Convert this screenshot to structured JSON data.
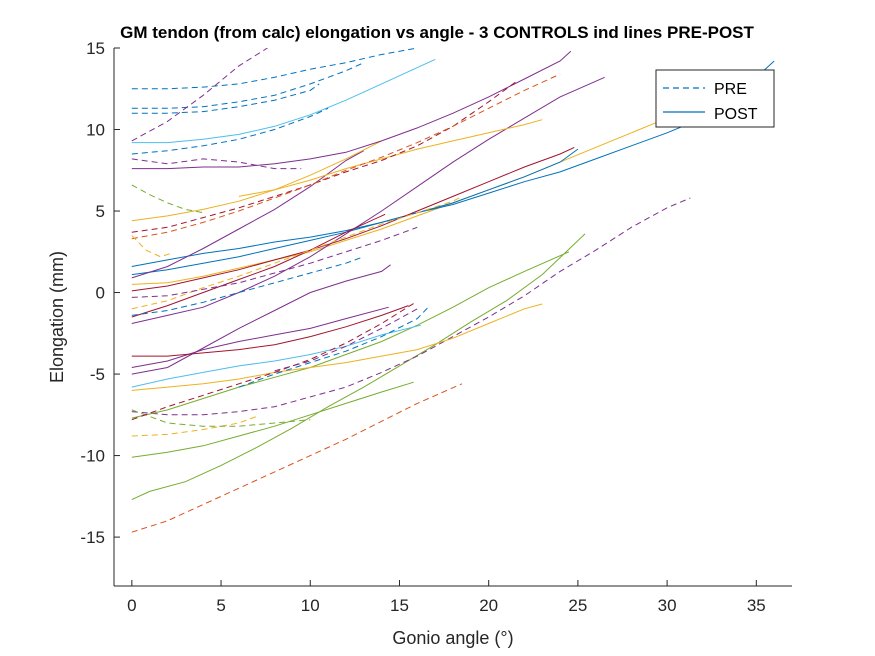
{
  "chart_data": {
    "type": "line",
    "title": "GM tendon (from calc) elongation vs angle - 3 CONTROLS ind lines PRE-POST",
    "xlabel": "Gonio angle (°)",
    "ylabel": "Elongation (mm)",
    "xlim": [
      -1,
      37
    ],
    "ylim": [
      -18,
      15
    ],
    "xticks": [
      0,
      5,
      10,
      15,
      20,
      25,
      30,
      35
    ],
    "yticks": [
      -15,
      -10,
      -5,
      0,
      5,
      10,
      15
    ],
    "grid": false,
    "legend": {
      "placement": "top-right",
      "entries": [
        {
          "label": "PRE",
          "style": "dashed",
          "color": "#0072bd"
        },
        {
          "label": "POST",
          "style": "solid",
          "color": "#0072bd"
        }
      ]
    },
    "series": [
      {
        "style": "dashed",
        "color": "#d95319",
        "x": [
          0,
          2,
          4,
          6,
          8,
          10,
          12,
          14,
          16,
          18.5
        ],
        "y": [
          -14.7,
          -14.0,
          -13.0,
          -12.0,
          -11.0,
          -10.0,
          -9.0,
          -7.9,
          -6.8,
          -5.6
        ]
      },
      {
        "style": "solid",
        "color": "#77ac30",
        "x": [
          0,
          1,
          3,
          5,
          7,
          9,
          11,
          13,
          15,
          17,
          19,
          21,
          23,
          25.4
        ],
        "y": [
          -12.7,
          -12.2,
          -11.6,
          -10.6,
          -9.5,
          -8.3,
          -7.0,
          -5.8,
          -4.5,
          -3.2,
          -1.8,
          -0.5,
          1.1,
          3.6
        ]
      },
      {
        "style": "solid",
        "color": "#77ac30",
        "x": [
          0,
          2,
          4,
          6,
          8,
          10,
          12,
          14,
          15.8
        ],
        "y": [
          -10.1,
          -9.8,
          -9.4,
          -8.8,
          -8.2,
          -7.5,
          -6.8,
          -6.1,
          -5.5
        ]
      },
      {
        "style": "dashed",
        "color": "#edb120",
        "x": [
          0,
          2,
          4,
          6,
          7
        ],
        "y": [
          -8.8,
          -8.7,
          -8.4,
          -8.0,
          -7.6
        ]
      },
      {
        "style": "dashed",
        "color": "#7e2f8e",
        "x": [
          0,
          2,
          4,
          6,
          8,
          10,
          12,
          14,
          16,
          18,
          20,
          22,
          24,
          26,
          28,
          30,
          31.3
        ],
        "y": [
          -7.3,
          -7.5,
          -7.5,
          -7.3,
          -7.0,
          -6.4,
          -5.8,
          -4.9,
          -3.9,
          -2.7,
          -1.5,
          -0.2,
          1.3,
          2.6,
          4.0,
          5.2,
          5.8
        ]
      },
      {
        "style": "dashed",
        "color": "#77ac30",
        "x": [
          0,
          2,
          4,
          6,
          8,
          10
        ],
        "y": [
          -7.2,
          -8.0,
          -8.2,
          -8.2,
          -8.0,
          -7.8
        ]
      },
      {
        "style": "solid",
        "color": "#77ac30",
        "x": [
          0,
          2,
          4,
          6,
          8,
          10,
          12,
          14,
          16,
          18,
          20,
          22,
          24.5
        ],
        "y": [
          -7.7,
          -7.2,
          -6.5,
          -5.8,
          -5.2,
          -4.6,
          -3.8,
          -3.0,
          -2.0,
          -0.9,
          0.3,
          1.3,
          2.5
        ]
      },
      {
        "style": "solid",
        "color": "#edb120",
        "x": [
          0,
          2,
          4,
          6,
          8,
          10,
          12,
          14,
          16,
          18,
          20,
          22,
          23
        ],
        "y": [
          -6.0,
          -5.8,
          -5.6,
          -5.3,
          -4.9,
          -4.6,
          -4.3,
          -3.9,
          -3.5,
          -2.8,
          -1.9,
          -1.0,
          -0.7
        ]
      },
      {
        "style": "solid",
        "color": "#4dbeee",
        "x": [
          0,
          2,
          4,
          6,
          8,
          10,
          12,
          14,
          16.2
        ],
        "y": [
          -5.8,
          -5.3,
          -4.9,
          -4.5,
          -4.2,
          -3.8,
          -3.3,
          -2.6,
          -2.0
        ]
      },
      {
        "style": "dashed",
        "color": "#a2142f",
        "x": [
          0,
          2,
          4,
          6,
          8,
          10,
          12,
          14,
          15.9
        ],
        "y": [
          -7.8,
          -7.0,
          -6.3,
          -5.6,
          -4.9,
          -4.1,
          -3.1,
          -1.9,
          -0.6
        ]
      },
      {
        "style": "dashed",
        "color": "#0072bd",
        "x": [
          6,
          8,
          10,
          12,
          14,
          16,
          16.7
        ],
        "y": [
          -5.8,
          -5.0,
          -4.3,
          -3.6,
          -2.7,
          -1.6,
          -0.8
        ]
      },
      {
        "style": "solid",
        "color": "#7e2f8e",
        "x": [
          0,
          2,
          4,
          6,
          8,
          10,
          12,
          14.4
        ],
        "y": [
          -4.6,
          -4.2,
          -3.5,
          -3.0,
          -2.6,
          -2.2,
          -1.6,
          -0.9
        ]
      },
      {
        "style": "solid",
        "color": "#a2142f",
        "x": [
          0,
          2,
          4,
          6,
          8,
          10,
          12,
          14,
          15.5
        ],
        "y": [
          -3.9,
          -3.9,
          -3.7,
          -3.5,
          -3.2,
          -2.7,
          -2.1,
          -1.4,
          -0.8
        ]
      },
      {
        "style": "solid",
        "color": "#7e2f8e",
        "x": [
          0,
          2,
          4,
          6,
          8,
          10,
          12,
          14,
          14.5
        ],
        "y": [
          -5.0,
          -4.6,
          -3.4,
          -2.2,
          -1.1,
          0.0,
          0.7,
          1.3,
          1.7
        ]
      },
      {
        "style": "solid",
        "color": "#edb120",
        "x": [
          0,
          2,
          4,
          6,
          8,
          10,
          12,
          14,
          16,
          18,
          20,
          22,
          24,
          26,
          28,
          30
        ],
        "y": [
          0.5,
          0.6,
          1.0,
          1.5,
          2.0,
          2.5,
          3.2,
          3.9,
          4.7,
          5.5,
          6.3,
          7.1,
          8.0,
          8.9,
          9.8,
          10.7
        ]
      },
      {
        "style": "solid",
        "color": "#0072bd",
        "x": [
          0,
          2,
          4,
          6,
          8,
          10,
          12,
          14,
          16,
          18,
          20,
          22,
          24,
          26,
          28,
          30,
          32,
          34,
          36
        ],
        "y": [
          1.6,
          2.0,
          2.4,
          2.7,
          3.1,
          3.4,
          3.8,
          4.3,
          4.9,
          5.4,
          6.1,
          6.8,
          7.4,
          8.2,
          9.0,
          9.8,
          10.7,
          12.2,
          14.2
        ]
      },
      {
        "style": "solid",
        "color": "#0072bd",
        "x": [
          0,
          2,
          4,
          6,
          8,
          10,
          12,
          14,
          16,
          18,
          20,
          22,
          24,
          25
        ],
        "y": [
          1.1,
          1.4,
          1.8,
          2.2,
          2.7,
          3.2,
          3.7,
          4.3,
          4.9,
          5.5,
          6.3,
          7.1,
          8.0,
          8.8
        ]
      },
      {
        "style": "solid",
        "color": "#a2142f",
        "x": [
          0,
          2,
          4,
          6,
          8,
          10,
          12,
          14,
          16,
          18,
          20,
          22,
          24,
          24.8
        ],
        "y": [
          0.1,
          0.4,
          0.9,
          1.4,
          2.0,
          2.6,
          3.3,
          4.1,
          5.0,
          5.9,
          6.8,
          7.7,
          8.5,
          8.9
        ]
      },
      {
        "style": "solid",
        "color": "#7e2f8e",
        "x": [
          0,
          2,
          4,
          6,
          8,
          10,
          12,
          13
        ],
        "y": [
          0.9,
          1.6,
          2.7,
          3.9,
          5.1,
          6.5,
          8.1,
          8.7
        ]
      },
      {
        "style": "solid",
        "color": "#7e2f8e",
        "x": [
          0,
          2,
          4,
          6,
          8,
          10,
          12,
          14,
          16,
          18,
          20,
          22,
          24,
          26.5
        ],
        "y": [
          -1.9,
          -1.4,
          -0.9,
          0.0,
          1.0,
          2.2,
          3.6,
          5.0,
          6.5,
          8.0,
          9.4,
          10.7,
          12.0,
          13.2
        ]
      },
      {
        "style": "solid",
        "color": "#a2142f",
        "x": [
          0,
          2,
          4,
          6,
          8,
          10,
          12,
          14.2
        ],
        "y": [
          -1.5,
          -0.8,
          0.0,
          0.8,
          1.6,
          2.6,
          3.7,
          4.8
        ]
      },
      {
        "style": "solid",
        "color": "#edb120",
        "x": [
          0,
          2,
          4,
          6,
          8,
          10,
          12,
          14
        ],
        "y": [
          4.4,
          4.7,
          5.1,
          5.6,
          6.3,
          7.2,
          8.2,
          9.3
        ]
      },
      {
        "style": "solid",
        "color": "#7e2f8e",
        "x": [
          0,
          2,
          4,
          6,
          8,
          10,
          12,
          14,
          16,
          18,
          20,
          22,
          24,
          24.6
        ],
        "y": [
          7.6,
          7.6,
          7.7,
          7.7,
          7.9,
          8.2,
          8.6,
          9.3,
          10.1,
          11.0,
          12.0,
          13.1,
          14.2,
          14.8
        ]
      },
      {
        "style": "solid",
        "color": "#edb120",
        "x": [
          6,
          8,
          10,
          12,
          14,
          16,
          18,
          20,
          22,
          23
        ],
        "y": [
          5.9,
          6.3,
          6.9,
          7.6,
          8.2,
          8.8,
          9.3,
          9.8,
          10.3,
          10.6
        ]
      },
      {
        "style": "dashed",
        "color": "#0072bd",
        "x": [
          0,
          2,
          4,
          6,
          8,
          10,
          12,
          14,
          16
        ],
        "y": [
          12.5,
          12.5,
          12.6,
          12.8,
          13.2,
          13.7,
          14.1,
          14.6,
          15.0
        ]
      },
      {
        "style": "dashed",
        "color": "#0072bd",
        "x": [
          0,
          2,
          4,
          6,
          8,
          10,
          12,
          13
        ],
        "y": [
          11.3,
          11.3,
          11.4,
          11.7,
          12.1,
          12.8,
          13.6,
          14.1
        ]
      },
      {
        "style": "dashed",
        "color": "#0072bd",
        "x": [
          0,
          2,
          4,
          6,
          8,
          10,
          10.5
        ],
        "y": [
          11.0,
          11.0,
          11.1,
          11.4,
          11.8,
          12.4,
          12.8
        ]
      },
      {
        "style": "dashed",
        "color": "#7e2f8e",
        "x": [
          0,
          2,
          4,
          6,
          7.6
        ],
        "y": [
          9.3,
          10.5,
          12.1,
          13.9,
          15.0
        ]
      },
      {
        "style": "solid",
        "color": "#4dbeee",
        "x": [
          0,
          2,
          4,
          6,
          8,
          10,
          12,
          14,
          16,
          17
        ],
        "y": [
          9.2,
          9.2,
          9.4,
          9.7,
          10.2,
          10.9,
          11.8,
          12.8,
          13.8,
          14.3
        ]
      },
      {
        "style": "dashed",
        "color": "#0072bd",
        "x": [
          0,
          2,
          4,
          6,
          8,
          10,
          11
        ],
        "y": [
          8.5,
          8.7,
          9.0,
          9.4,
          10.0,
          10.8,
          11.3
        ]
      },
      {
        "style": "dashed",
        "color": "#7e2f8e",
        "x": [
          0,
          2,
          4,
          6,
          8,
          9.5
        ],
        "y": [
          8.2,
          7.9,
          8.2,
          8.0,
          7.6,
          7.6
        ]
      },
      {
        "style": "dashed",
        "color": "#77ac30",
        "x": [
          0,
          1,
          2,
          3,
          4
        ],
        "y": [
          6.6,
          6.0,
          5.5,
          5.1,
          4.9
        ]
      },
      {
        "style": "dashed",
        "color": "#a2142f",
        "x": [
          0,
          2,
          4,
          6,
          8,
          10,
          12,
          14,
          16,
          18,
          20,
          21.5
        ],
        "y": [
          3.7,
          4.0,
          4.6,
          5.2,
          5.9,
          6.6,
          7.4,
          8.1,
          9.0,
          10.2,
          11.7,
          12.9
        ]
      },
      {
        "style": "dashed",
        "color": "#d95319",
        "x": [
          0,
          2,
          4,
          6,
          8,
          10,
          12,
          14,
          16,
          18,
          20,
          22,
          24
        ],
        "y": [
          3.3,
          3.7,
          4.3,
          5.0,
          5.8,
          6.6,
          7.5,
          8.3,
          9.2,
          10.2,
          11.3,
          12.4,
          13.4
        ]
      },
      {
        "style": "dashed",
        "color": "#edb120",
        "x": [
          0,
          0.8,
          1.6,
          2.2
        ],
        "y": [
          3.5,
          2.6,
          2.2,
          2.4
        ]
      },
      {
        "style": "dashed",
        "color": "#edb120",
        "x": [
          0,
          2,
          4,
          6,
          8,
          10,
          12,
          14,
          16,
          18,
          18.5
        ],
        "y": [
          -1.0,
          -0.5,
          0.3,
          1.0,
          1.8,
          2.6,
          3.4,
          4.2,
          4.9,
          5.6,
          5.9
        ]
      },
      {
        "style": "dashed",
        "color": "#7e2f8e",
        "x": [
          0,
          2,
          4,
          6,
          8,
          10,
          12,
          14,
          16
        ],
        "y": [
          -0.3,
          -0.2,
          0.2,
          0.6,
          1.2,
          1.8,
          2.5,
          3.2,
          4.0
        ]
      },
      {
        "style": "dashed",
        "color": "#0072bd",
        "x": [
          0,
          2,
          4,
          6,
          8,
          10,
          12,
          13
        ],
        "y": [
          -1.4,
          -1.1,
          -0.6,
          0.0,
          0.6,
          1.2,
          1.8,
          2.2
        ]
      },
      {
        "style": "dashed",
        "color": "#7e2f8e",
        "x": [
          8,
          10,
          12,
          14,
          16
        ],
        "y": [
          -4.8,
          -4.2,
          -3.3,
          -2.2,
          -1.0
        ]
      }
    ]
  }
}
